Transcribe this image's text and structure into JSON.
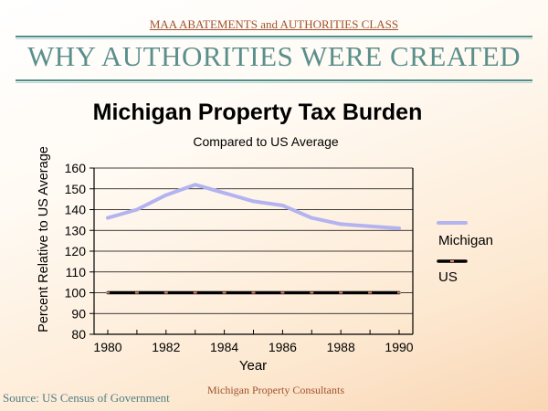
{
  "header": {
    "course_title": "MAA ABATEMENTS and AUTHORITIES CLASS",
    "slide_title": "WHY AUTHORITIES WERE CREATED"
  },
  "footer": {
    "source": "Source:  US Census of Government",
    "credit": "Michigan Property Consultants"
  },
  "colors": {
    "michigan": "#b3b3f0",
    "us": "#000000",
    "us_marker": "#d9896a",
    "grid": "#000000"
  },
  "chart_data": {
    "type": "line",
    "title": "Michigan Property Tax Burden",
    "subtitle": "Compared to US Average",
    "xlabel": "Year",
    "ylabel": "Percent Relative to US Average",
    "x": [
      1980,
      1981,
      1982,
      1983,
      1984,
      1985,
      1986,
      1987,
      1988,
      1989,
      1990
    ],
    "xlim": [
      1980,
      1990
    ],
    "ylim": [
      80,
      160
    ],
    "x_ticks": [
      1980,
      1982,
      1984,
      1986,
      1988,
      1990
    ],
    "y_ticks": [
      80,
      90,
      100,
      110,
      120,
      130,
      140,
      150,
      160
    ],
    "grid": "horizontal",
    "legend_position": "right",
    "series": [
      {
        "name": "Michigan",
        "values": [
          136,
          140,
          147,
          152,
          148,
          144,
          142,
          136,
          133,
          132,
          131
        ]
      },
      {
        "name": "US",
        "values": [
          100,
          100,
          100,
          100,
          100,
          100,
          100,
          100,
          100,
          100,
          100
        ]
      }
    ]
  }
}
